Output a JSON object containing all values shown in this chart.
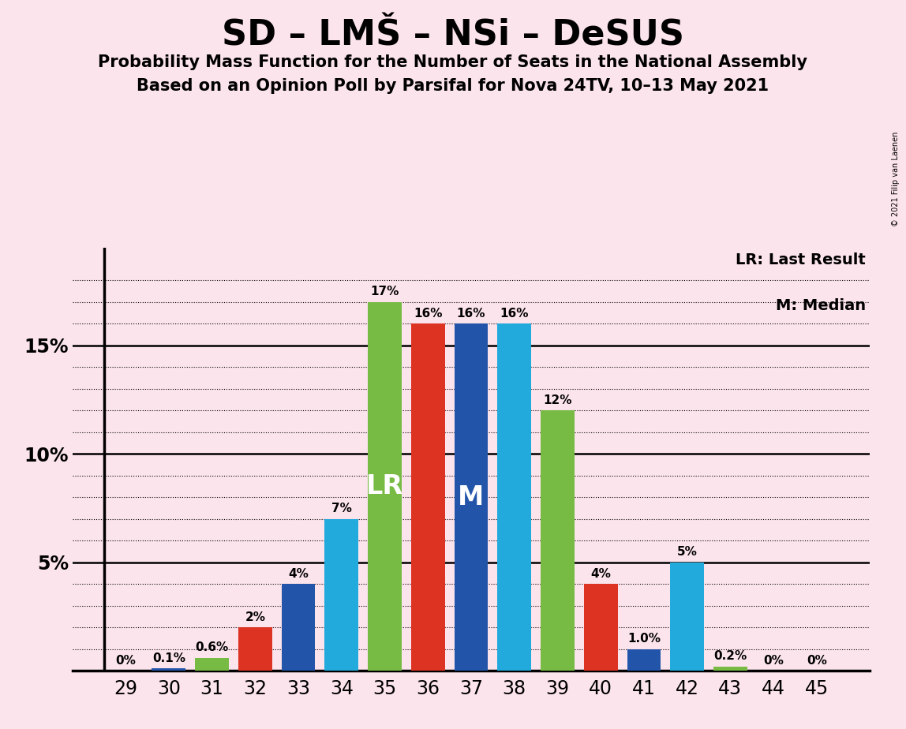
{
  "title": "SD – LMŠ – NSi – DeSUS",
  "subtitle1": "Probability Mass Function for the Number of Seats in the National Assembly",
  "subtitle2": "Based on an Opinion Poll by Parsifal for Nova 24TV, 10–13 May 2021",
  "copyright": "© 2021 Filip van Laenen",
  "seats": [
    29,
    30,
    31,
    32,
    33,
    34,
    35,
    36,
    37,
    38,
    39,
    40,
    41,
    42,
    43,
    44,
    45
  ],
  "values": [
    0.0,
    0.1,
    0.6,
    2.0,
    4.0,
    7.0,
    17.0,
    16.0,
    16.0,
    16.0,
    12.0,
    4.0,
    1.0,
    5.0,
    0.2,
    0.0,
    0.0
  ],
  "bar_labels": [
    "0%",
    "0.1%",
    "0.6%",
    "2%",
    "4%",
    "7%",
    "17%",
    "16%",
    "16%",
    "16%",
    "12%",
    "4%",
    "1.0%",
    "5%",
    "0.2%",
    "0%",
    "0%"
  ],
  "colors": [
    "#2255aa",
    "#2255aa",
    "#77bb44",
    "#dd3322",
    "#2255aa",
    "#22aadd",
    "#77bb44",
    "#dd3322",
    "#2255aa",
    "#22aadd",
    "#77bb44",
    "#dd3322",
    "#2255aa",
    "#22aadd",
    "#77bb44",
    "#2255aa",
    "#22aadd"
  ],
  "lr_seat": 35,
  "median_seat": 37,
  "lr_label": "LR",
  "median_label": "M",
  "lr_legend": "LR: Last Result",
  "median_legend": "M: Median",
  "background_color": "#fce4ec",
  "ylim": [
    0,
    19.5
  ],
  "yticks": [
    5,
    10,
    15
  ],
  "ytick_labels": [
    "5%",
    "10%",
    "15%"
  ],
  "extra_dotted": [
    1,
    2,
    3,
    4,
    6,
    7,
    8,
    9,
    11,
    12,
    13,
    14,
    16,
    17,
    18
  ],
  "solid_lines": [
    5,
    10,
    15
  ],
  "bar_label_fontsize": 11,
  "tick_fontsize": 17,
  "lr_legend_fontsize": 14,
  "title_fontsize": 32,
  "subtitle_fontsize": 15
}
